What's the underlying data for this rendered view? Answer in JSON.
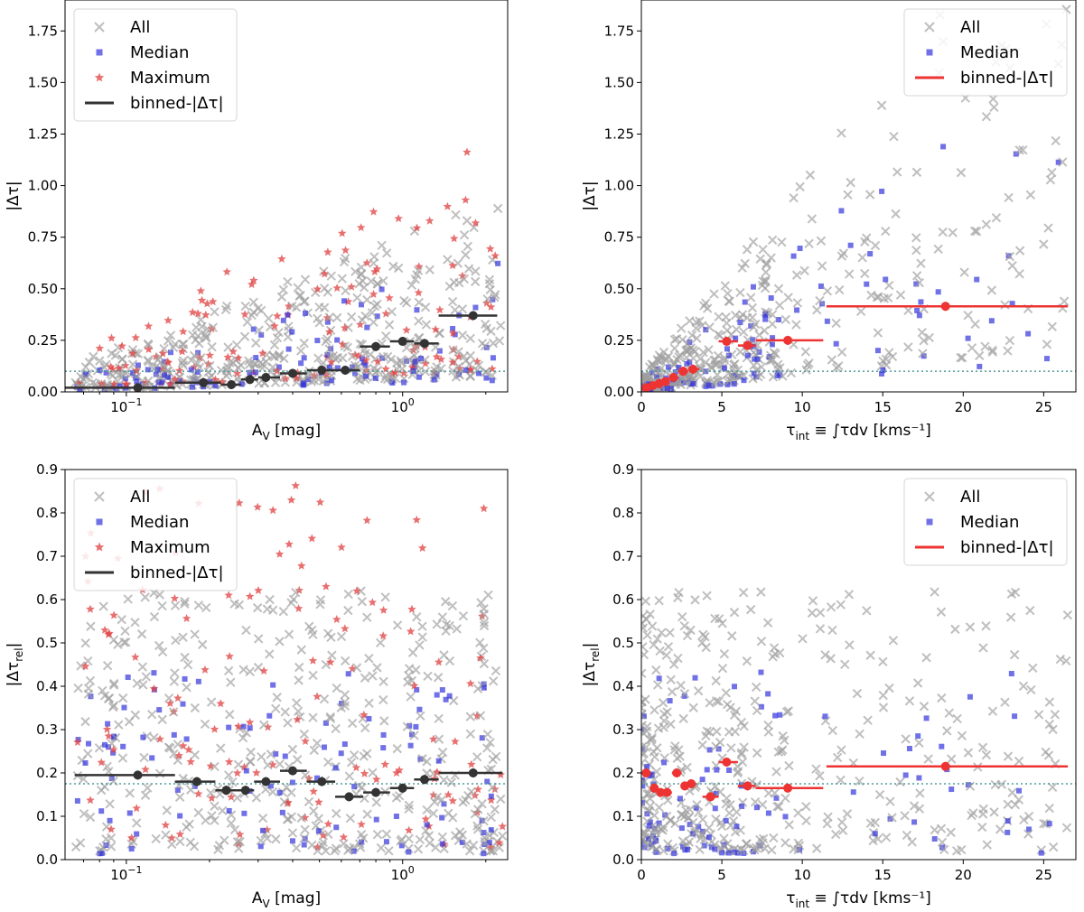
{
  "chart_data": [
    {
      "id": "top-left",
      "type": "scatter",
      "xscale": "log",
      "xlim": [
        0.06,
        2.4
      ],
      "ylim": [
        0,
        1.9
      ],
      "xlabel_main": "A",
      "xlabel_sub": "V",
      "xlabel_unit": " [mag]",
      "ylabel_main": "|Δτ|",
      "ylabel_sub": "",
      "xticks": [
        {
          "v": 0.1,
          "base": "10",
          "exp": "−1"
        },
        {
          "v": 1.0,
          "base": "10",
          "exp": "0"
        }
      ],
      "yticks": [
        {
          "v": 0.0,
          "label": "0.00"
        },
        {
          "v": 0.25,
          "label": "0.25"
        },
        {
          "v": 0.5,
          "label": "0.50"
        },
        {
          "v": 0.75,
          "label": "0.75"
        },
        {
          "v": 1.0,
          "label": "1.00"
        },
        {
          "v": 1.25,
          "label": "1.25"
        },
        {
          "v": 1.5,
          "label": "1.50"
        },
        {
          "v": 1.75,
          "label": "1.75"
        }
      ],
      "ref_y": 0.1,
      "legend": {
        "placement": "top-left",
        "entries": [
          "All",
          "Median",
          "Maximum",
          "binned-|Δτ|"
        ]
      },
      "binned_color": "#333333",
      "binned": [
        {
          "x": 0.11,
          "xlo": 0.06,
          "xhi": 0.15,
          "y": 0.02
        },
        {
          "x": 0.19,
          "xlo": 0.15,
          "xhi": 0.22,
          "y": 0.045
        },
        {
          "x": 0.24,
          "xlo": 0.22,
          "xhi": 0.26,
          "y": 0.035
        },
        {
          "x": 0.28,
          "xlo": 0.26,
          "xhi": 0.3,
          "y": 0.06
        },
        {
          "x": 0.32,
          "xlo": 0.3,
          "xhi": 0.36,
          "y": 0.07
        },
        {
          "x": 0.4,
          "xlo": 0.36,
          "xhi": 0.45,
          "y": 0.09
        },
        {
          "x": 0.51,
          "xlo": 0.45,
          "xhi": 0.57,
          "y": 0.105
        },
        {
          "x": 0.62,
          "xlo": 0.57,
          "xhi": 0.7,
          "y": 0.105
        },
        {
          "x": 0.8,
          "xlo": 0.7,
          "xhi": 0.9,
          "y": 0.22
        },
        {
          "x": 1.0,
          "xlo": 0.9,
          "xhi": 1.1,
          "y": 0.245
        },
        {
          "x": 1.2,
          "xlo": 1.1,
          "xhi": 1.35,
          "y": 0.235
        },
        {
          "x": 1.8,
          "xlo": 1.35,
          "xhi": 2.2,
          "y": 0.37
        }
      ]
    },
    {
      "id": "top-right",
      "type": "scatter",
      "xscale": "linear",
      "xlim": [
        0,
        27
      ],
      "ylim": [
        0,
        1.9
      ],
      "xlabel_main": "τ",
      "xlabel_sub": "int",
      "xlabel_unit": " ≡ ∫τdv [kms⁻¹]",
      "ylabel_main": "|Δτ|",
      "ylabel_sub": "",
      "xticks": [
        {
          "v": 0,
          "label": "0"
        },
        {
          "v": 5,
          "label": "5"
        },
        {
          "v": 10,
          "label": "10"
        },
        {
          "v": 15,
          "label": "15"
        },
        {
          "v": 20,
          "label": "20"
        },
        {
          "v": 25,
          "label": "25"
        }
      ],
      "yticks": [
        {
          "v": 0.0,
          "label": "0.00"
        },
        {
          "v": 0.25,
          "label": "0.25"
        },
        {
          "v": 0.5,
          "label": "0.50"
        },
        {
          "v": 0.75,
          "label": "0.75"
        },
        {
          "v": 1.0,
          "label": "1.00"
        },
        {
          "v": 1.25,
          "label": "1.25"
        },
        {
          "v": 1.5,
          "label": "1.50"
        },
        {
          "v": 1.75,
          "label": "1.75"
        }
      ],
      "ref_y": 0.1,
      "legend": {
        "placement": "top-right",
        "entries": [
          "All",
          "Median",
          "binned-|Δτ|"
        ]
      },
      "binned_color": "#ee3333",
      "binned": [
        {
          "x": 0.3,
          "xlo": 0.0,
          "xhi": 0.5,
          "y": 0.02
        },
        {
          "x": 0.7,
          "xlo": 0.5,
          "xhi": 0.9,
          "y": 0.03
        },
        {
          "x": 1.1,
          "xlo": 0.9,
          "xhi": 1.3,
          "y": 0.04
        },
        {
          "x": 1.5,
          "xlo": 1.3,
          "xhi": 1.7,
          "y": 0.05
        },
        {
          "x": 2.0,
          "xlo": 1.7,
          "xhi": 2.3,
          "y": 0.07
        },
        {
          "x": 2.6,
          "xlo": 2.3,
          "xhi": 2.9,
          "y": 0.1
        },
        {
          "x": 3.2,
          "xlo": 2.9,
          "xhi": 3.6,
          "y": 0.11
        },
        {
          "x": 5.3,
          "xlo": 4.8,
          "xhi": 6.0,
          "y": 0.245
        },
        {
          "x": 6.6,
          "xlo": 6.0,
          "xhi": 7.1,
          "y": 0.225
        },
        {
          "x": 9.1,
          "xlo": 7.1,
          "xhi": 11.3,
          "y": 0.25
        },
        {
          "x": 18.9,
          "xlo": 11.5,
          "xhi": 26.5,
          "y": 0.415
        }
      ]
    },
    {
      "id": "bottom-left",
      "type": "scatter",
      "xscale": "log",
      "xlim": [
        0.06,
        2.4
      ],
      "ylim": [
        0,
        0.9
      ],
      "xlabel_main": "A",
      "xlabel_sub": "V",
      "xlabel_unit": " [mag]",
      "ylabel_main": "|Δτ",
      "ylabel_sub": "rel",
      "xticks": [
        {
          "v": 0.1,
          "base": "10",
          "exp": "−1"
        },
        {
          "v": 1.0,
          "base": "10",
          "exp": "0"
        }
      ],
      "yticks": [
        {
          "v": 0.0,
          "label": "0.0"
        },
        {
          "v": 0.1,
          "label": "0.1"
        },
        {
          "v": 0.2,
          "label": "0.2"
        },
        {
          "v": 0.3,
          "label": "0.3"
        },
        {
          "v": 0.4,
          "label": "0.4"
        },
        {
          "v": 0.5,
          "label": "0.5"
        },
        {
          "v": 0.6,
          "label": "0.6"
        },
        {
          "v": 0.7,
          "label": "0.7"
        },
        {
          "v": 0.8,
          "label": "0.8"
        },
        {
          "v": 0.9,
          "label": "0.9"
        }
      ],
      "ref_y": 0.175,
      "legend": {
        "placement": "top-left",
        "entries": [
          "All",
          "Median",
          "Maximum",
          "binned-|Δτ|"
        ]
      },
      "binned_color": "#333333",
      "binned": [
        {
          "x": 0.11,
          "xlo": 0.065,
          "xhi": 0.15,
          "y": 0.195
        },
        {
          "x": 0.18,
          "xlo": 0.15,
          "xhi": 0.21,
          "y": 0.18
        },
        {
          "x": 0.23,
          "xlo": 0.21,
          "xhi": 0.25,
          "y": 0.16
        },
        {
          "x": 0.27,
          "xlo": 0.25,
          "xhi": 0.29,
          "y": 0.16
        },
        {
          "x": 0.32,
          "xlo": 0.29,
          "xhi": 0.36,
          "y": 0.18
        },
        {
          "x": 0.4,
          "xlo": 0.36,
          "xhi": 0.45,
          "y": 0.205
        },
        {
          "x": 0.51,
          "xlo": 0.45,
          "xhi": 0.57,
          "y": 0.18
        },
        {
          "x": 0.64,
          "xlo": 0.57,
          "xhi": 0.72,
          "y": 0.145
        },
        {
          "x": 0.8,
          "xlo": 0.72,
          "xhi": 0.9,
          "y": 0.155
        },
        {
          "x": 1.0,
          "xlo": 0.9,
          "xhi": 1.1,
          "y": 0.165
        },
        {
          "x": 1.2,
          "xlo": 1.1,
          "xhi": 1.35,
          "y": 0.185
        },
        {
          "x": 1.8,
          "xlo": 1.35,
          "xhi": 2.3,
          "y": 0.2
        }
      ]
    },
    {
      "id": "bottom-right",
      "type": "scatter",
      "xscale": "linear",
      "xlim": [
        0,
        27
      ],
      "ylim": [
        0,
        0.9
      ],
      "xlabel_main": "τ",
      "xlabel_sub": "int",
      "xlabel_unit": " ≡ ∫τdv [kms⁻¹]",
      "ylabel_main": "|Δτ",
      "ylabel_sub": "rel",
      "xticks": [
        {
          "v": 0,
          "label": "0"
        },
        {
          "v": 5,
          "label": "5"
        },
        {
          "v": 10,
          "label": "10"
        },
        {
          "v": 15,
          "label": "15"
        },
        {
          "v": 20,
          "label": "20"
        },
        {
          "v": 25,
          "label": "25"
        }
      ],
      "yticks": [
        {
          "v": 0.0,
          "label": "0.0"
        },
        {
          "v": 0.1,
          "label": "0.1"
        },
        {
          "v": 0.2,
          "label": "0.2"
        },
        {
          "v": 0.3,
          "label": "0.3"
        },
        {
          "v": 0.4,
          "label": "0.4"
        },
        {
          "v": 0.5,
          "label": "0.5"
        },
        {
          "v": 0.6,
          "label": "0.6"
        },
        {
          "v": 0.7,
          "label": "0.7"
        },
        {
          "v": 0.8,
          "label": "0.8"
        },
        {
          "v": 0.9,
          "label": "0.9"
        }
      ],
      "ref_y": 0.175,
      "legend": {
        "placement": "top-right",
        "entries": [
          "All",
          "Median",
          "binned-|Δτ|"
        ]
      },
      "binned_color": "#ee3333",
      "binned": [
        {
          "x": 0.3,
          "xlo": 0.0,
          "xhi": 0.6,
          "y": 0.2
        },
        {
          "x": 0.8,
          "xlo": 0.6,
          "xhi": 1.0,
          "y": 0.165
        },
        {
          "x": 1.2,
          "xlo": 1.0,
          "xhi": 1.4,
          "y": 0.155
        },
        {
          "x": 1.6,
          "xlo": 1.4,
          "xhi": 1.9,
          "y": 0.155
        },
        {
          "x": 2.2,
          "xlo": 1.9,
          "xhi": 2.5,
          "y": 0.2
        },
        {
          "x": 2.7,
          "xlo": 2.5,
          "xhi": 2.9,
          "y": 0.17
        },
        {
          "x": 3.1,
          "xlo": 2.9,
          "xhi": 3.4,
          "y": 0.175
        },
        {
          "x": 4.3,
          "xlo": 3.8,
          "xhi": 4.8,
          "y": 0.145
        },
        {
          "x": 5.3,
          "xlo": 4.8,
          "xhi": 6.0,
          "y": 0.225
        },
        {
          "x": 6.6,
          "xlo": 6.0,
          "xhi": 7.1,
          "y": 0.17
        },
        {
          "x": 9.1,
          "xlo": 7.1,
          "xhi": 11.3,
          "y": 0.165
        },
        {
          "x": 18.9,
          "xlo": 11.5,
          "xhi": 26.5,
          "y": 0.215
        }
      ]
    }
  ],
  "colors": {
    "all": "#9e9e9e",
    "median": "#3333dd",
    "maximum": "#e04040",
    "reference": "#4f9a9a"
  }
}
